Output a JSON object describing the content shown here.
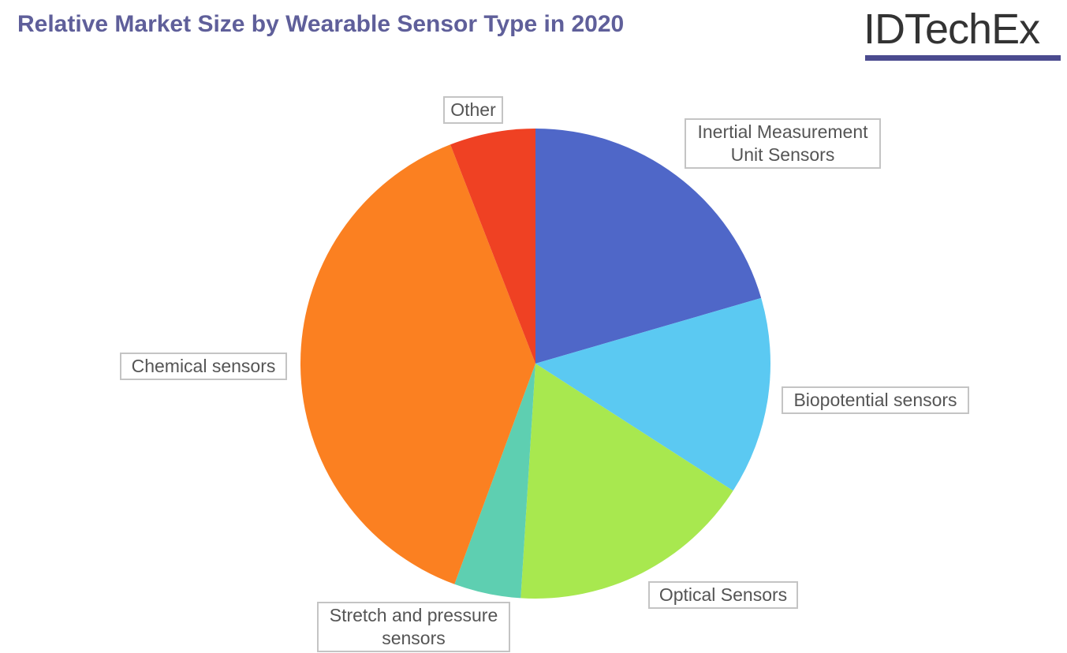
{
  "chart_data": {
    "type": "pie",
    "title": "Relative Market Size by Wearable Sensor Type in 2020",
    "categories": [
      "Inertial Measurement Unit Sensors",
      "Biopotential sensors",
      "Optical Sensors",
      "Stretch and pressure sensors",
      "Chemical sensors",
      "Other"
    ],
    "values": [
      20.5,
      13.6,
      16.9,
      4.6,
      38.5,
      5.9
    ],
    "colors": [
      "#4f67c8",
      "#5bc9f2",
      "#a8e84f",
      "#5ecfb1",
      "#fb8021",
      "#ef4123"
    ]
  },
  "logo": "IDTechEx"
}
